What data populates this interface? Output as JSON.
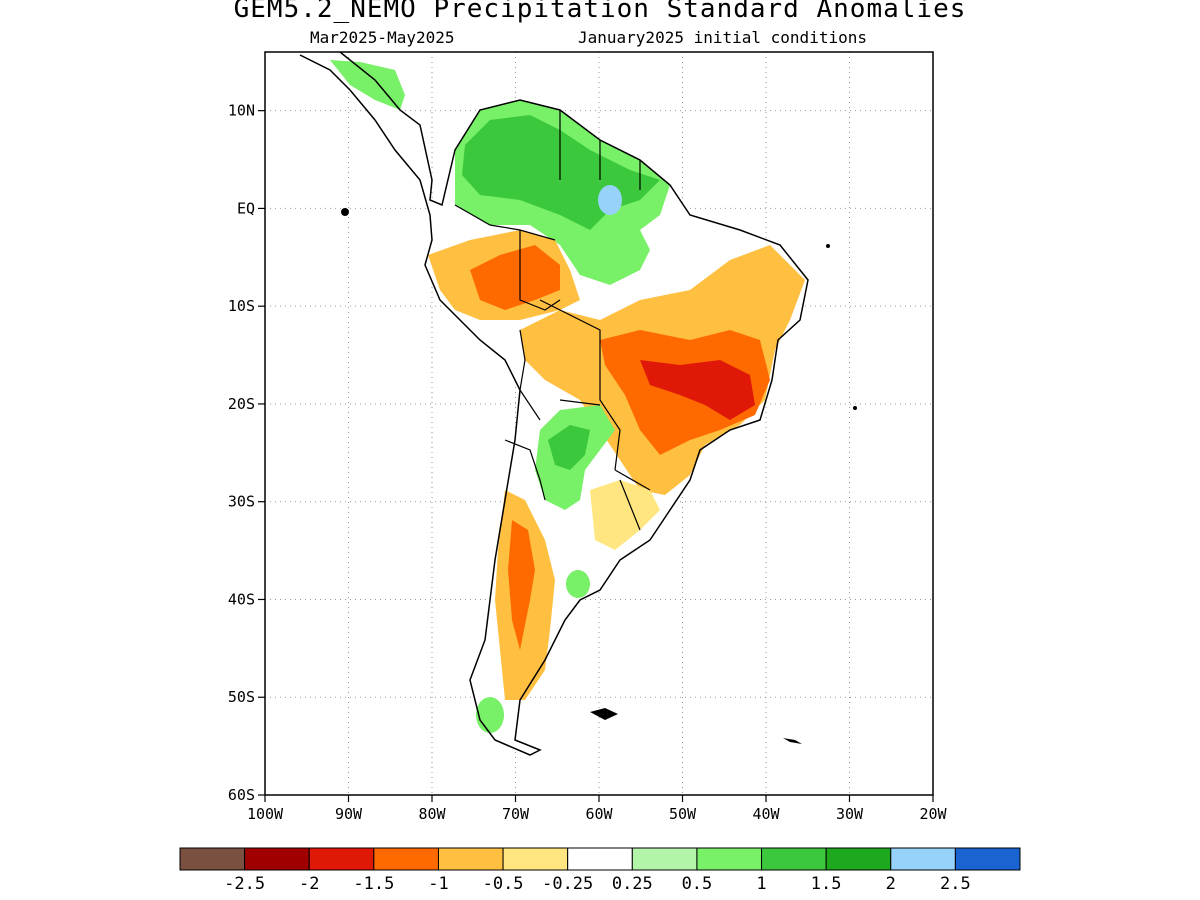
{
  "header": {
    "title": "GEM5.2_NEMO Precipitation Standard Anomalies",
    "period": "Mar2025-May2025",
    "init": "January2025 initial conditions"
  },
  "axes": {
    "lat_labels": [
      "10N",
      "EQ",
      "10S",
      "20S",
      "30S",
      "40S",
      "50S",
      "60S"
    ],
    "lon_labels": [
      "100W",
      "90W",
      "80W",
      "70W",
      "60W",
      "50W",
      "40W",
      "30W",
      "20W"
    ],
    "lat_values": [
      10,
      0,
      -10,
      -20,
      -30,
      -40,
      -50,
      -60
    ],
    "lon_values": [
      -100,
      -90,
      -80,
      -70,
      -60,
      -50,
      -40,
      -30,
      -20
    ],
    "lat_range": [
      -60,
      16
    ],
    "lon_range": [
      -100,
      -20
    ],
    "grid": true
  },
  "legend": {
    "colors": [
      "#7a5040",
      "#a00000",
      "#e01808",
      "#ff6a00",
      "#ffbf40",
      "#ffe680",
      "#ffffff",
      "#b2f5a8",
      "#78f068",
      "#3cc83c",
      "#1ea81e",
      "#96d2fa",
      "#1a64d2"
    ],
    "labels": [
      "-2.5",
      "-2",
      "-1.5",
      "-1",
      "-0.5",
      "-0.25",
      "0.25",
      "0.5",
      "1",
      "1.5",
      "2",
      "2.5"
    ]
  },
  "anomaly_regions": [
    {
      "level": "1",
      "color": "#78f068"
    },
    {
      "level": "1.5",
      "color": "#3cc83c"
    },
    {
      "level": "2.5",
      "color": "#96d2fa"
    },
    {
      "level": "-0.5",
      "color": "#ffbf40"
    },
    {
      "level": "-1",
      "color": "#ff6a00"
    },
    {
      "level": "-1.5",
      "color": "#e01808"
    }
  ]
}
